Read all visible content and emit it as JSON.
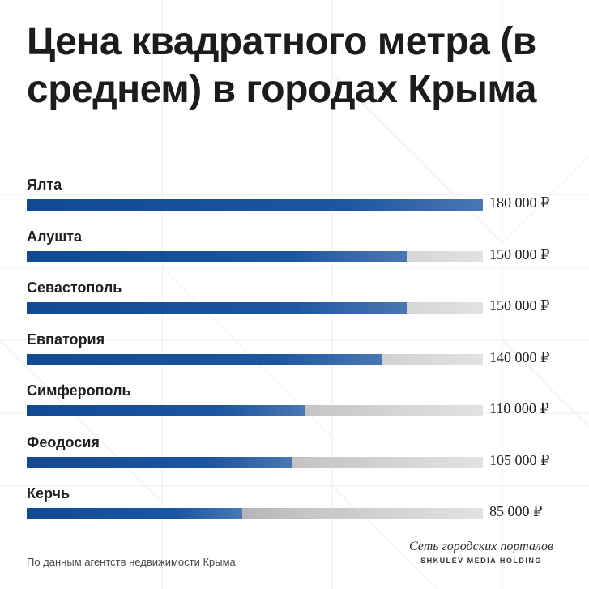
{
  "title": "Цена квадратного метра (в среднем) в городах Крыма",
  "source": "По данным агентств недвижимости Крыма",
  "brand": {
    "line1": "Сеть городских порталов",
    "line2": "SHKULEV MEDIA HOLDING"
  },
  "colors": {
    "bar_fill": "#1d56a0",
    "bar_track": "#c4c4c4",
    "title": "#1c1c1c"
  },
  "chart_data": {
    "type": "bar",
    "orientation": "horizontal",
    "title": "Цена квадратного метра (в среднем) в городах Крыма",
    "xlim": [
      0,
      180000
    ],
    "grid": false,
    "categories": [
      "Ялта",
      "Алушта",
      "Севастополь",
      "Евпатория",
      "Симферополь",
      "Феодосия",
      "Керчь"
    ],
    "values": [
      180000,
      150000,
      150000,
      140000,
      110000,
      105000,
      85000
    ],
    "value_labels": [
      "180 000 ₽",
      "150 000 ₽",
      "150 000 ₽",
      "140 000 ₽",
      "110 000 ₽",
      "105 000 ₽",
      "85 000 ₽"
    ]
  }
}
